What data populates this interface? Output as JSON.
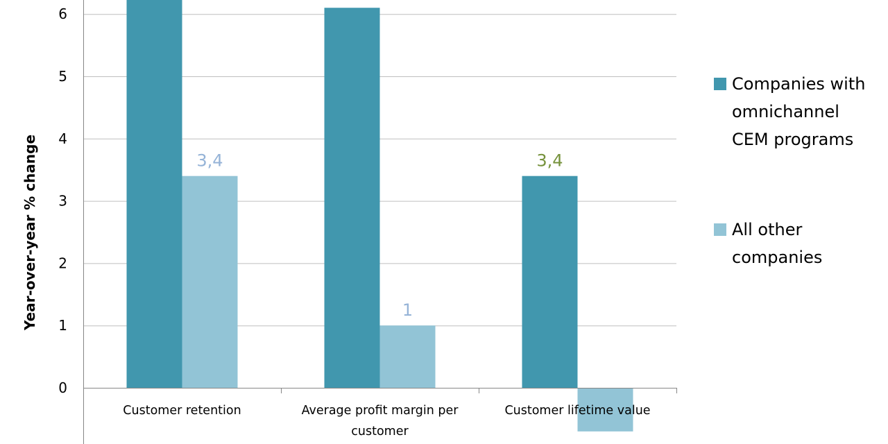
{
  "chart_data": {
    "type": "bar",
    "ylabel": "Year-over-year % change",
    "ylim": [
      -1,
      6
    ],
    "yticks": [
      0,
      1,
      2,
      3,
      4,
      5,
      6
    ],
    "grid": true,
    "legend_position": "right",
    "categories": [
      [
        "Customer retention"
      ],
      [
        "Average profit margin per",
        "customer"
      ],
      [
        "Customer lifetime value"
      ]
    ],
    "series": [
      {
        "name": [
          "Companies with",
          "omnichannel",
          "CEM programs"
        ],
        "color": "#4197ae",
        "values": [
          6.3,
          6.1,
          3.4
        ],
        "labels": [
          "",
          "",
          "3,4"
        ],
        "label_color": "#76923c"
      },
      {
        "name": [
          "All other",
          "companies"
        ],
        "color": "#92c4d6",
        "values": [
          3.4,
          1,
          -0.7
        ],
        "labels": [
          "3,4",
          "1",
          ""
        ],
        "label_color": "#95b3d7"
      }
    ]
  }
}
